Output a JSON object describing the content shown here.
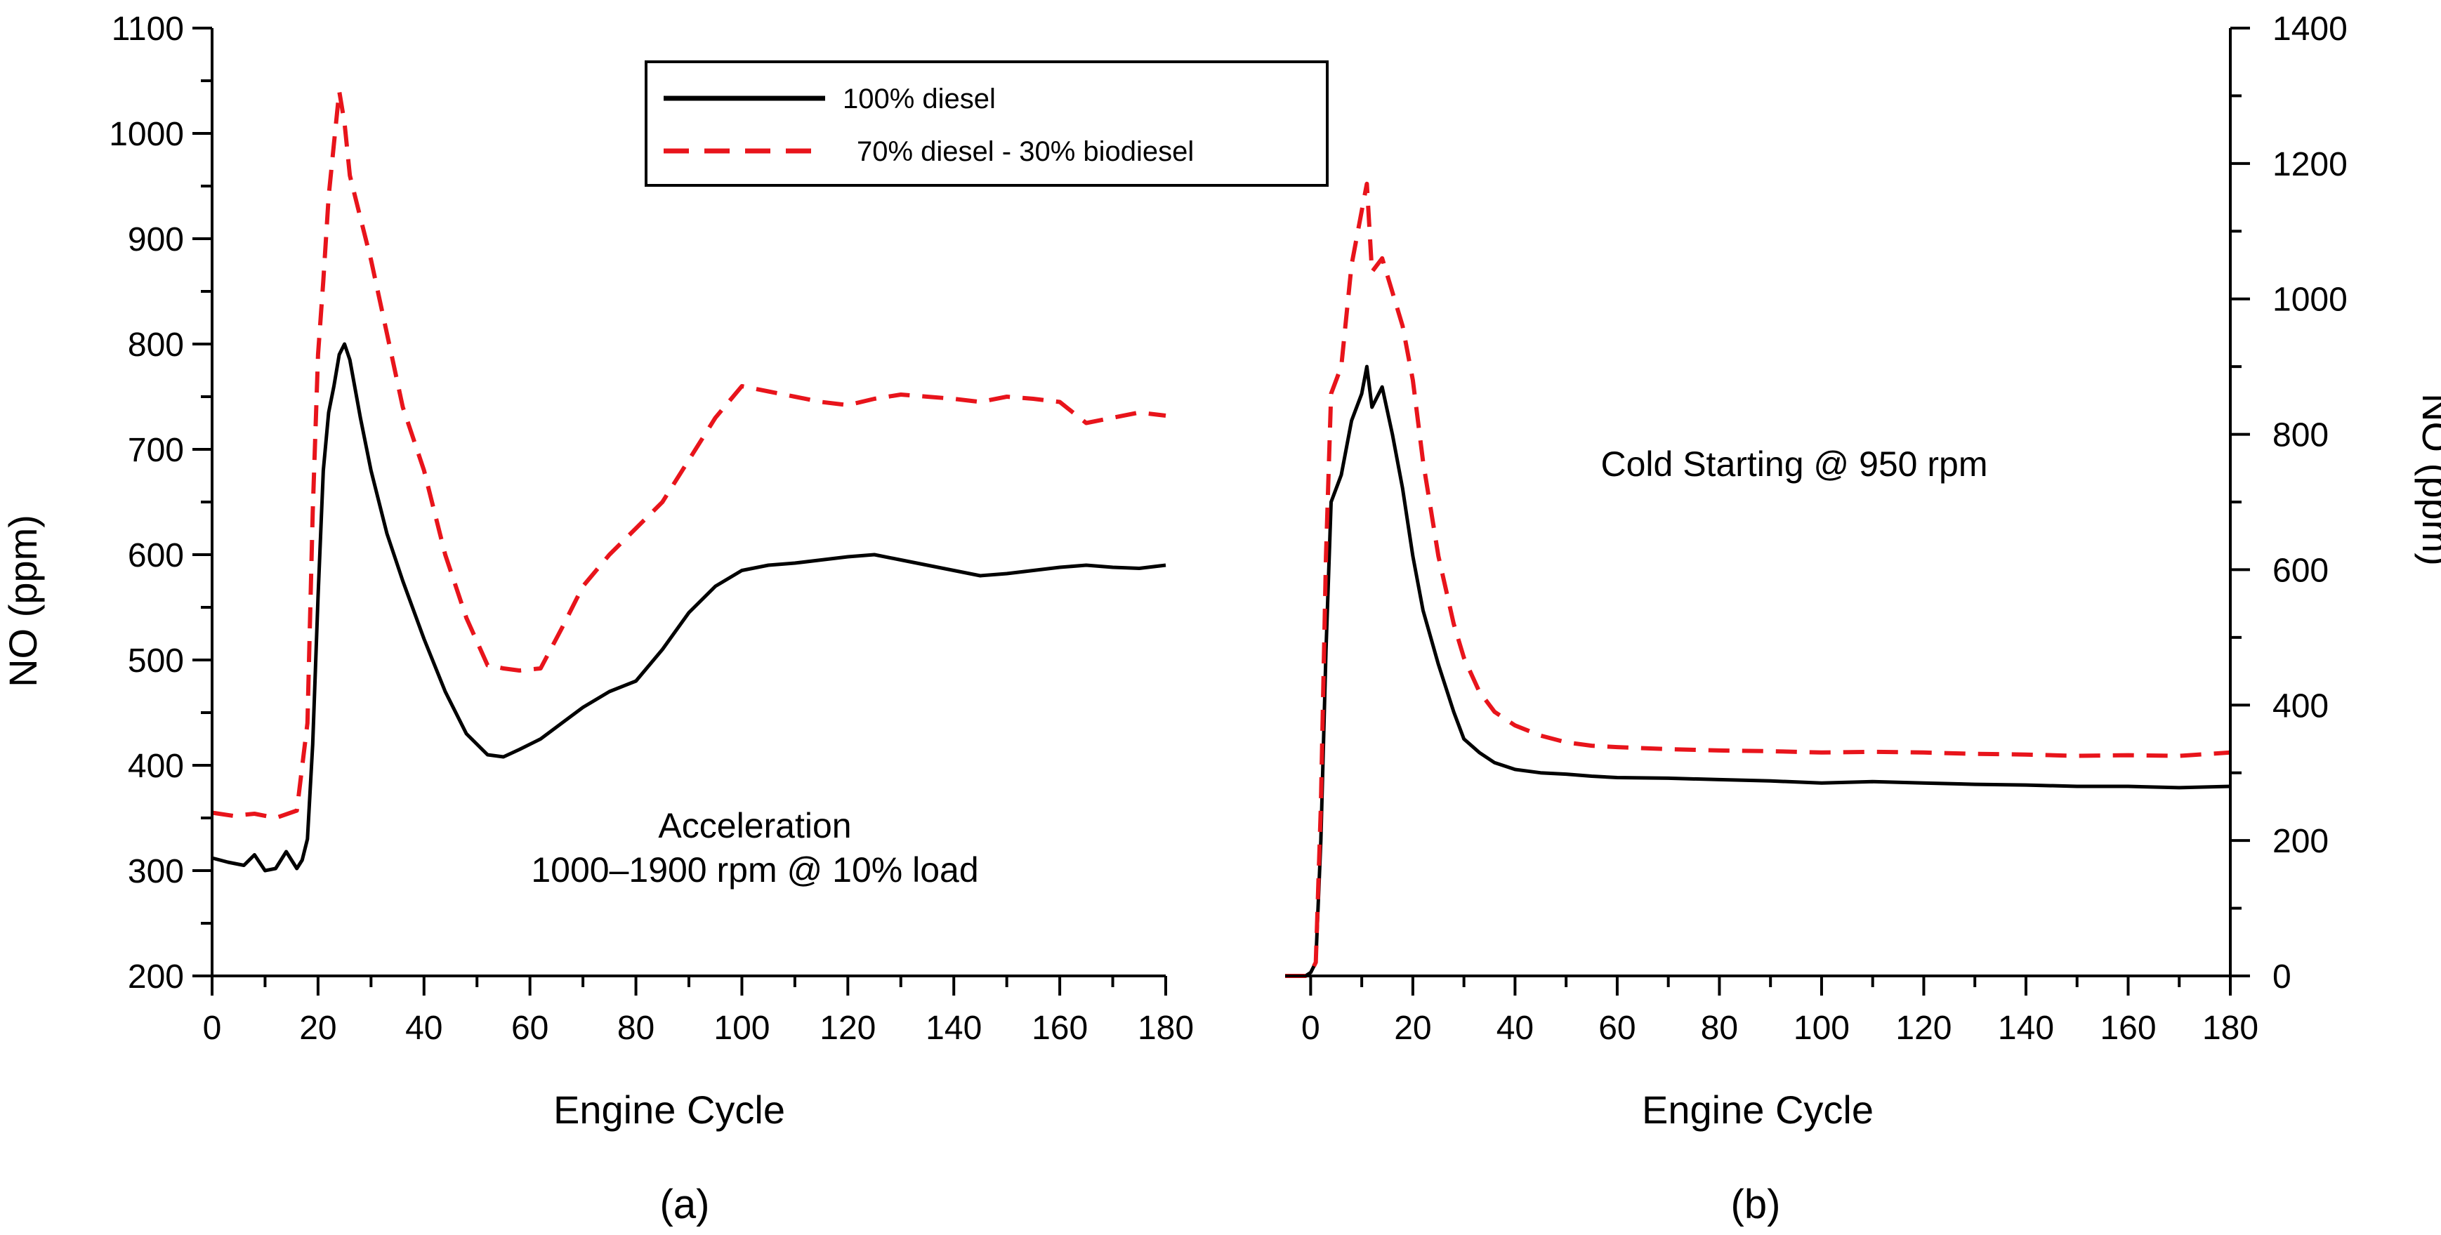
{
  "figure": {
    "panel_labels": [
      "(a)",
      "(b)"
    ],
    "legend": {
      "entries": [
        {
          "label": "100% diesel",
          "color": "#000000",
          "dash": "solid"
        },
        {
          "label": "70% diesel - 30% biodiesel",
          "color": "#e8141b",
          "dash": "dashed"
        }
      ]
    }
  },
  "chart_data": [
    {
      "type": "line",
      "panel": "(a)",
      "xlabel": "Engine Cycle",
      "ylabel": "NO (ppm)",
      "xlim": [
        0,
        180
      ],
      "ylim": [
        200,
        1100
      ],
      "xticks": [
        0,
        20,
        40,
        60,
        80,
        100,
        120,
        140,
        160,
        180
      ],
      "yticks": [
        200,
        300,
        400,
        500,
        600,
        700,
        800,
        900,
        1000,
        1100
      ],
      "y_axis_side": "left",
      "annotation": [
        "Acceleration",
        "1000–1900 rpm @ 10% load"
      ],
      "legend_position": "top",
      "series": [
        {
          "name": "100% diesel",
          "color": "#000000",
          "x": [
            0,
            3,
            6,
            8,
            10,
            12,
            14,
            16,
            17,
            18,
            19,
            20,
            21,
            22,
            23,
            24,
            25,
            26,
            28,
            30,
            33,
            36,
            40,
            44,
            48,
            52,
            55,
            58,
            62,
            66,
            70,
            75,
            80,
            85,
            90,
            95,
            100,
            105,
            110,
            115,
            120,
            125,
            130,
            135,
            140,
            145,
            150,
            155,
            160,
            165,
            170,
            175,
            180
          ],
          "y": [
            312,
            308,
            305,
            315,
            300,
            302,
            318,
            302,
            310,
            330,
            420,
            560,
            680,
            735,
            760,
            790,
            800,
            785,
            730,
            680,
            620,
            575,
            520,
            470,
            430,
            410,
            408,
            415,
            425,
            440,
            455,
            470,
            480,
            510,
            545,
            570,
            585,
            590,
            592,
            595,
            598,
            600,
            595,
            590,
            585,
            580,
            582,
            585,
            588,
            590,
            588,
            587,
            590
          ]
        },
        {
          "name": "70% diesel - 30% biodiesel",
          "color": "#e8141b",
          "x": [
            0,
            4,
            8,
            12,
            16,
            18,
            19,
            20,
            21,
            22,
            23,
            24,
            25,
            26,
            28,
            30,
            33,
            36,
            40,
            44,
            48,
            52,
            55,
            58,
            62,
            66,
            70,
            75,
            80,
            85,
            90,
            95,
            100,
            105,
            110,
            115,
            120,
            125,
            130,
            135,
            140,
            145,
            150,
            155,
            160,
            165,
            170,
            175,
            180
          ],
          "y": [
            355,
            352,
            354,
            350,
            357,
            440,
            640,
            790,
            860,
            940,
            990,
            1040,
            1010,
            960,
            920,
            880,
            810,
            740,
            680,
            600,
            540,
            495,
            492,
            490,
            492,
            530,
            570,
            600,
            625,
            650,
            690,
            730,
            760,
            755,
            750,
            745,
            742,
            748,
            752,
            750,
            748,
            745,
            750,
            748,
            745,
            725,
            730,
            735,
            732
          ]
        }
      ]
    },
    {
      "type": "line",
      "panel": "(b)",
      "xlabel": "Engine Cycle",
      "ylabel": "NO (ppm)",
      "xlim": [
        -5,
        180
      ],
      "ylim": [
        0,
        1400
      ],
      "xticks": [
        0,
        20,
        40,
        60,
        80,
        100,
        120,
        140,
        160,
        180
      ],
      "yticks": [
        0,
        200,
        400,
        600,
        800,
        1000,
        1200,
        1400
      ],
      "y_axis_side": "right",
      "annotation": [
        "Cold Starting @ 950 rpm"
      ],
      "series": [
        {
          "name": "100% diesel",
          "color": "#000000",
          "x": [
            -5,
            -1,
            0,
            1,
            2,
            3,
            4,
            6,
            8,
            10,
            11,
            12,
            14,
            16,
            18,
            20,
            22,
            25,
            28,
            30,
            33,
            36,
            40,
            45,
            50,
            55,
            60,
            70,
            80,
            90,
            100,
            110,
            120,
            130,
            140,
            150,
            160,
            170,
            180
          ],
          "y": [
            0,
            0,
            5,
            20,
            200,
            480,
            700,
            740,
            820,
            860,
            900,
            840,
            870,
            800,
            720,
            620,
            540,
            460,
            390,
            350,
            330,
            315,
            305,
            300,
            298,
            295,
            293,
            292,
            290,
            288,
            285,
            287,
            285,
            283,
            282,
            280,
            280,
            278,
            280
          ]
        },
        {
          "name": "70% diesel - 30% biodiesel",
          "color": "#e8141b",
          "x": [
            -5,
            -1,
            0,
            1,
            2,
            3,
            4,
            6,
            8,
            10,
            11,
            12,
            14,
            16,
            18,
            20,
            22,
            25,
            28,
            30,
            33,
            36,
            40,
            45,
            50,
            55,
            60,
            70,
            80,
            90,
            100,
            110,
            120,
            130,
            140,
            150,
            160,
            170,
            180
          ],
          "y": [
            0,
            0,
            5,
            20,
            250,
            620,
            860,
            900,
            1050,
            1130,
            1170,
            1040,
            1060,
            1010,
            960,
            880,
            760,
            620,
            520,
            470,
            420,
            390,
            370,
            355,
            345,
            340,
            338,
            335,
            333,
            332,
            330,
            331,
            330,
            328,
            327,
            325,
            326,
            325,
            330
          ]
        }
      ]
    }
  ]
}
